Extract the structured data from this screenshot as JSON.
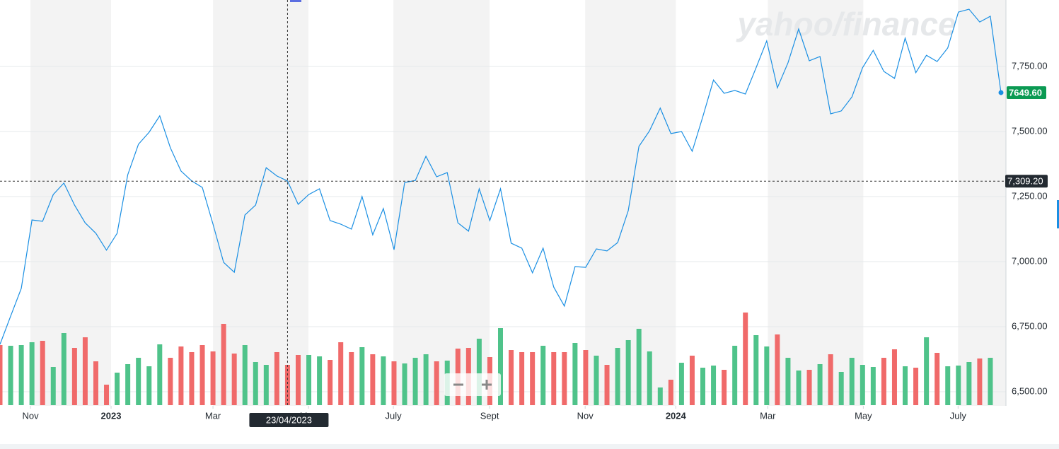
{
  "chart_data": {
    "type": "line",
    "watermark": "yahoo/finance",
    "series": [
      {
        "name": "Close",
        "color": "#1a8fe3",
        "values": [
          6682,
          6791,
          6897,
          7160,
          7155,
          7258,
          7302,
          7217,
          7149,
          7109,
          7044,
          7109,
          7334,
          7451,
          7497,
          7560,
          7437,
          7348,
          7310,
          7285,
          7144,
          6997,
          6959,
          7179,
          7217,
          7361,
          7329,
          7310,
          7220,
          7258,
          7280,
          7158,
          7144,
          7125,
          7250,
          7103,
          7204,
          7046,
          7304,
          7312,
          7405,
          7326,
          7342,
          7149,
          7117,
          7280,
          7158,
          7280,
          7071,
          7052,
          6957,
          7052,
          6902,
          6829,
          6981,
          6978,
          7049,
          7041,
          7073,
          7196,
          7443,
          7503,
          7590,
          7492,
          7500,
          7424,
          7557,
          7698,
          7647,
          7658,
          7644,
          7745,
          7848,
          7668,
          7764,
          7894,
          7772,
          7788,
          7568,
          7579,
          7633,
          7745,
          7812,
          7731,
          7704,
          7859,
          7726,
          7793,
          7769,
          7821,
          7959,
          7970,
          7921,
          7943,
          7649.6
        ],
        "value_labels": [
          null,
          null,
          null,
          null,
          null,
          null,
          null,
          null,
          null,
          null,
          null,
          null,
          null,
          null,
          null,
          null,
          null,
          null,
          null,
          null,
          null,
          null,
          null,
          null,
          null,
          null,
          null,
          null,
          null,
          null,
          null,
          null,
          null,
          null,
          null,
          null,
          null,
          null,
          null,
          null,
          null,
          null,
          null,
          null,
          null,
          null,
          null,
          null,
          null,
          null,
          null,
          null,
          null,
          null,
          null,
          null,
          null,
          null,
          null,
          null,
          null,
          null,
          null,
          null,
          null,
          null,
          null,
          null,
          null,
          null,
          null,
          null,
          null,
          null,
          null,
          null,
          null,
          null,
          null,
          null,
          null,
          null,
          null,
          null,
          null,
          null,
          null,
          null,
          null,
          null,
          null,
          null,
          null,
          null,
          "7649.60"
        ]
      }
    ],
    "volume": {
      "up_color": "#4fc38a",
      "down_color": "#f06a6a",
      "vlim": [
        0,
        150
      ],
      "values": [
        85,
        84,
        85,
        89,
        91,
        54,
        102,
        81,
        96,
        62,
        29,
        46,
        58,
        67,
        55,
        86,
        67,
        83,
        75,
        85,
        76,
        115,
        73,
        85,
        61,
        57,
        75,
        57,
        71,
        71,
        69,
        64,
        89,
        75,
        82,
        72,
        69,
        62,
        59,
        67,
        72,
        62,
        63,
        80,
        81,
        94,
        68,
        109,
        78,
        75,
        75,
        84,
        75,
        75,
        88,
        78,
        70,
        57,
        81,
        92,
        108,
        76,
        25,
        36,
        60,
        70,
        53,
        56,
        50,
        84,
        131,
        99,
        83,
        100,
        67,
        49,
        50,
        58,
        72,
        47,
        67,
        57,
        54,
        67,
        79,
        55,
        53,
        96,
        74,
        55,
        56,
        61,
        66,
        67,
        null
      ]
    },
    "xlim": [
      0,
      94
    ],
    "xticks": [
      {
        "value": 2.86,
        "label": "Nov"
      },
      {
        "value": 10.43,
        "label": "2023"
      },
      {
        "value": 20.0,
        "label": "Mar"
      },
      {
        "value": 28.97,
        "label": "May"
      },
      {
        "value": 36.94,
        "label": "July"
      },
      {
        "value": 45.98,
        "label": "Sept"
      },
      {
        "value": 54.95,
        "label": "Nov"
      },
      {
        "value": 63.46,
        "label": "2024"
      },
      {
        "value": 72.1,
        "label": "Mar"
      },
      {
        "value": 81.07,
        "label": "May"
      },
      {
        "value": 89.97,
        "label": "July"
      }
    ],
    "ylim": [
      6450,
      8000
    ],
    "yticks": [
      {
        "value": 6500,
        "label": "6,500.00"
      },
      {
        "value": 6750,
        "label": "6,750.00"
      },
      {
        "value": 7000,
        "label": "7,000.00"
      },
      {
        "value": 7250,
        "label": "7,250.00"
      },
      {
        "value": 7500,
        "label": "7,500.00"
      },
      {
        "value": 7750,
        "label": "7,750.00"
      }
    ],
    "grid": true,
    "crosshair": {
      "x": 27,
      "y": 7309.2,
      "x_label": "23/04/2023",
      "y_label": "7,309.20"
    }
  }
}
